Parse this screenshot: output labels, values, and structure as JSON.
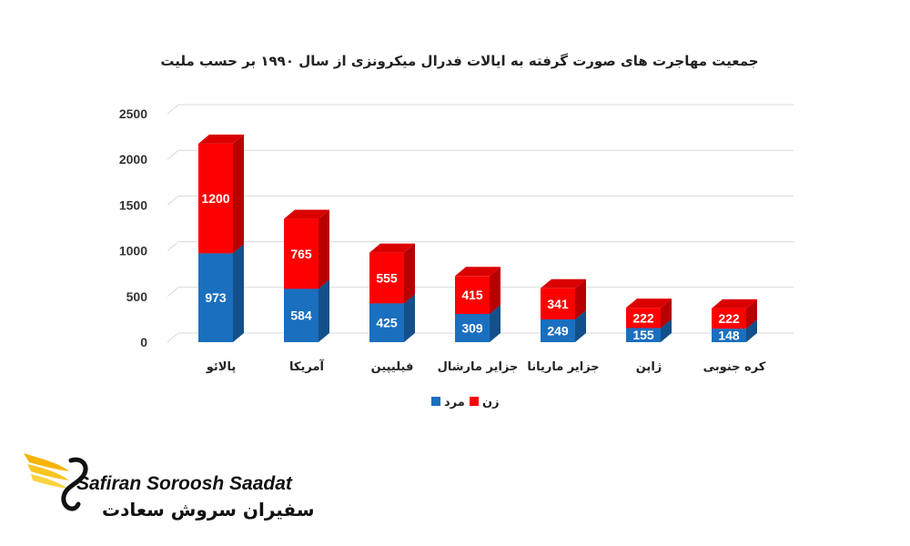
{
  "colors": {
    "female": "#ff0000",
    "male": "#1a6fbf",
    "grid": "#d9d9d9"
  },
  "chart_data": {
    "type": "bar",
    "stacked": true,
    "title": "جمعیت مهاجرت های صورت گرفته به ایالات فدرال میکرونزی از سال ۱۹۹۰ بر حسب ملیت",
    "categories": [
      "پالائو",
      "آمریکا",
      "فیلیپین",
      "جزایر مارشال",
      "جزایر ماریانا",
      "ژاپن",
      "کره جنوبی"
    ],
    "series": [
      {
        "name": "مرد",
        "values": [
          973,
          584,
          425,
          309,
          249,
          155,
          148
        ]
      },
      {
        "name": "زن",
        "values": [
          1200,
          765,
          555,
          415,
          341,
          222,
          222
        ]
      }
    ],
    "yticks": [
      "0",
      "500",
      "1000",
      "1500",
      "2000",
      "2500"
    ],
    "ylim": [
      0,
      2500
    ],
    "grid": true,
    "legend": "bottom"
  },
  "brand": {
    "name_en": "Safiran Soroosh Saadat",
    "name_fa": "سفیران سروش سعادت"
  }
}
